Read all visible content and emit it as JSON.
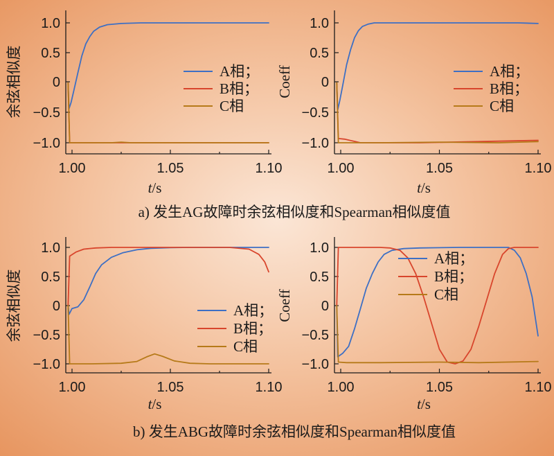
{
  "figure": {
    "caption_a": "a) 发生AG故障时余弦相似度和Spearman相似度值",
    "caption_b": "b) 发生ABG故障时余弦相似度和Spearman相似度值"
  },
  "colors": {
    "A": "#3d6fc4",
    "B": "#d8452c",
    "C": "#b67a19"
  },
  "chart_data": [
    {
      "type": "line",
      "ylabel": "余弦相似度",
      "xlabel": "t/s",
      "xlim": [
        0.997,
        1.1
      ],
      "ylim": [
        -1.15,
        1.12
      ],
      "xticks": [
        "1.00",
        "1.05",
        "1.10"
      ],
      "yticks": [
        "1.0",
        "0.5",
        "0",
        "−0.5",
        "−1.0"
      ],
      "legend_position": "right",
      "series": [
        {
          "name": "A相；",
          "points": [
            [
              0.998,
              0
            ],
            [
              0.9985,
              -0.43
            ],
            [
              0.9995,
              -0.33
            ],
            [
              1.001,
              -0.12
            ],
            [
              1.003,
              0.17
            ],
            [
              1.005,
              0.45
            ],
            [
              1.007,
              0.65
            ],
            [
              1.009,
              0.77
            ],
            [
              1.011,
              0.86
            ],
            [
              1.014,
              0.93
            ],
            [
              1.018,
              0.97
            ],
            [
              1.025,
              0.99
            ],
            [
              1.035,
              1.0
            ],
            [
              1.1,
              1.0
            ]
          ]
        },
        {
          "name": "B相；",
          "points": [
            [
              0.998,
              0
            ],
            [
              0.9988,
              -1.0
            ],
            [
              1.1,
              -1.0
            ]
          ]
        },
        {
          "name": "C相",
          "points": [
            [
              0.998,
              0
            ],
            [
              0.9988,
              -1.0
            ],
            [
              1.02,
              -1.0
            ],
            [
              1.025,
              -0.99
            ],
            [
              1.03,
              -1.0
            ],
            [
              1.1,
              -1.0
            ]
          ]
        }
      ]
    },
    {
      "type": "line",
      "ylabel": "Coeff",
      "xlabel": "t/s",
      "xlim": [
        0.997,
        1.1
      ],
      "ylim": [
        -1.15,
        1.12
      ],
      "xticks": [
        "1.00",
        "1.05",
        "1.10"
      ],
      "yticks": [
        "1.0",
        "0.5",
        "0",
        "−0.5",
        "−1.0"
      ],
      "legend_position": "right",
      "series": [
        {
          "name": "A相；",
          "points": [
            [
              0.998,
              0
            ],
            [
              0.9985,
              -0.45
            ],
            [
              0.9995,
              -0.3
            ],
            [
              1.001,
              -0.05
            ],
            [
              1.003,
              0.3
            ],
            [
              1.005,
              0.55
            ],
            [
              1.007,
              0.75
            ],
            [
              1.009,
              0.87
            ],
            [
              1.011,
              0.94
            ],
            [
              1.014,
              0.98
            ],
            [
              1.017,
              1.0
            ],
            [
              1.09,
              1.0
            ],
            [
              1.1,
              0.99
            ]
          ]
        },
        {
          "name": "B相；",
          "points": [
            [
              0.998,
              0
            ],
            [
              0.9988,
              -0.93
            ],
            [
              1.002,
              -0.94
            ],
            [
              1.006,
              -0.97
            ],
            [
              1.01,
              -1.0
            ],
            [
              1.04,
              -1.0
            ],
            [
              1.07,
              -0.98
            ],
            [
              1.1,
              -0.96
            ]
          ]
        },
        {
          "name": "C相",
          "points": [
            [
              0.998,
              0
            ],
            [
              0.9988,
              -1.0
            ],
            [
              1.02,
              -1.0
            ],
            [
              1.05,
              -0.99
            ],
            [
              1.08,
              -1.0
            ],
            [
              1.1,
              -0.98
            ]
          ]
        }
      ]
    },
    {
      "type": "line",
      "ylabel": "余弦相似度",
      "xlabel": "t/s",
      "xlim": [
        0.997,
        1.1
      ],
      "ylim": [
        -1.15,
        1.03
      ],
      "xticks": [
        "1.00",
        "1.05",
        "1.10"
      ],
      "yticks": [
        "1.0",
        "0.5",
        "0",
        "−0.5",
        "−1.0"
      ],
      "legend_position": "bottom-right",
      "series": [
        {
          "name": "A相；",
          "points": [
            [
              0.998,
              0
            ],
            [
              0.9985,
              -0.15
            ],
            [
              1.0,
              -0.05
            ],
            [
              1.003,
              -0.02
            ],
            [
              1.006,
              0.1
            ],
            [
              1.009,
              0.32
            ],
            [
              1.012,
              0.55
            ],
            [
              1.015,
              0.7
            ],
            [
              1.02,
              0.83
            ],
            [
              1.026,
              0.91
            ],
            [
              1.033,
              0.96
            ],
            [
              1.04,
              0.985
            ],
            [
              1.05,
              0.995
            ],
            [
              1.06,
              1.0
            ],
            [
              1.1,
              1.0
            ]
          ]
        },
        {
          "name": "B相；",
          "points": [
            [
              0.998,
              0
            ],
            [
              0.9988,
              0.85
            ],
            [
              1.002,
              0.92
            ],
            [
              1.006,
              0.97
            ],
            [
              1.012,
              0.99
            ],
            [
              1.02,
              1.0
            ],
            [
              1.08,
              1.0
            ],
            [
              1.09,
              0.97
            ],
            [
              1.095,
              0.88
            ],
            [
              1.098,
              0.75
            ],
            [
              1.1,
              0.58
            ]
          ]
        },
        {
          "name": "C相",
          "points": [
            [
              0.998,
              0
            ],
            [
              0.9988,
              -1.0
            ],
            [
              1.01,
              -1.0
            ],
            [
              1.025,
              -0.99
            ],
            [
              1.033,
              -0.96
            ],
            [
              1.038,
              -0.88
            ],
            [
              1.042,
              -0.83
            ],
            [
              1.046,
              -0.87
            ],
            [
              1.052,
              -0.95
            ],
            [
              1.06,
              -0.99
            ],
            [
              1.07,
              -1.0
            ],
            [
              1.1,
              -1.0
            ]
          ]
        }
      ]
    },
    {
      "type": "line",
      "ylabel": "Coeff",
      "xlabel": "t/s",
      "xlim": [
        0.997,
        1.1
      ],
      "ylim": [
        -1.15,
        1.03
      ],
      "xticks": [
        "1.00",
        "1.05",
        "1.10"
      ],
      "yticks": [
        "1.0",
        "0.5",
        "0",
        "−0.5",
        "−1.0"
      ],
      "legend_position": "top-right",
      "series": [
        {
          "name": "A相；",
          "points": [
            [
              0.998,
              0
            ],
            [
              0.9985,
              -0.88
            ],
            [
              1.001,
              -0.82
            ],
            [
              1.004,
              -0.7
            ],
            [
              1.007,
              -0.4
            ],
            [
              1.01,
              -0.05
            ],
            [
              1.013,
              0.3
            ],
            [
              1.016,
              0.55
            ],
            [
              1.019,
              0.75
            ],
            [
              1.022,
              0.88
            ],
            [
              1.026,
              0.95
            ],
            [
              1.032,
              0.98
            ],
            [
              1.04,
              0.99
            ],
            [
              1.06,
              1.0
            ],
            [
              1.085,
              1.0
            ],
            [
              1.088,
              0.95
            ],
            [
              1.091,
              0.82
            ],
            [
              1.094,
              0.55
            ],
            [
              1.097,
              0.15
            ],
            [
              1.1,
              -0.52
            ]
          ]
        },
        {
          "name": "B相；",
          "points": [
            [
              0.998,
              0
            ],
            [
              0.9988,
              1.0
            ],
            [
              1.02,
              1.0
            ],
            [
              1.025,
              0.99
            ],
            [
              1.03,
              0.95
            ],
            [
              1.034,
              0.82
            ],
            [
              1.038,
              0.55
            ],
            [
              1.042,
              0.15
            ],
            [
              1.046,
              -0.3
            ],
            [
              1.05,
              -0.75
            ],
            [
              1.054,
              -0.97
            ],
            [
              1.058,
              -1.0
            ],
            [
              1.062,
              -0.95
            ],
            [
              1.066,
              -0.75
            ],
            [
              1.07,
              -0.35
            ],
            [
              1.074,
              0.1
            ],
            [
              1.078,
              0.55
            ],
            [
              1.082,
              0.88
            ],
            [
              1.085,
              0.98
            ],
            [
              1.088,
              1.0
            ],
            [
              1.1,
              1.0
            ]
          ]
        },
        {
          "name": "C相",
          "points": [
            [
              0.998,
              0
            ],
            [
              0.9988,
              -0.97
            ],
            [
              1.003,
              -0.98
            ],
            [
              1.02,
              -0.98
            ],
            [
              1.05,
              -0.97
            ],
            [
              1.07,
              -0.98
            ],
            [
              1.1,
              -0.96
            ]
          ]
        }
      ]
    }
  ]
}
